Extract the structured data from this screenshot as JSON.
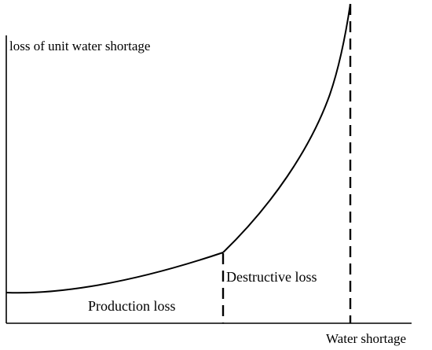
{
  "diagram": {
    "y_axis_label": "loss of unit water shortage",
    "x_axis_label": "Water shortage",
    "region_labels": {
      "production": "Production loss",
      "destructive": "Destructive loss"
    },
    "stroke_color": "#000000"
  }
}
